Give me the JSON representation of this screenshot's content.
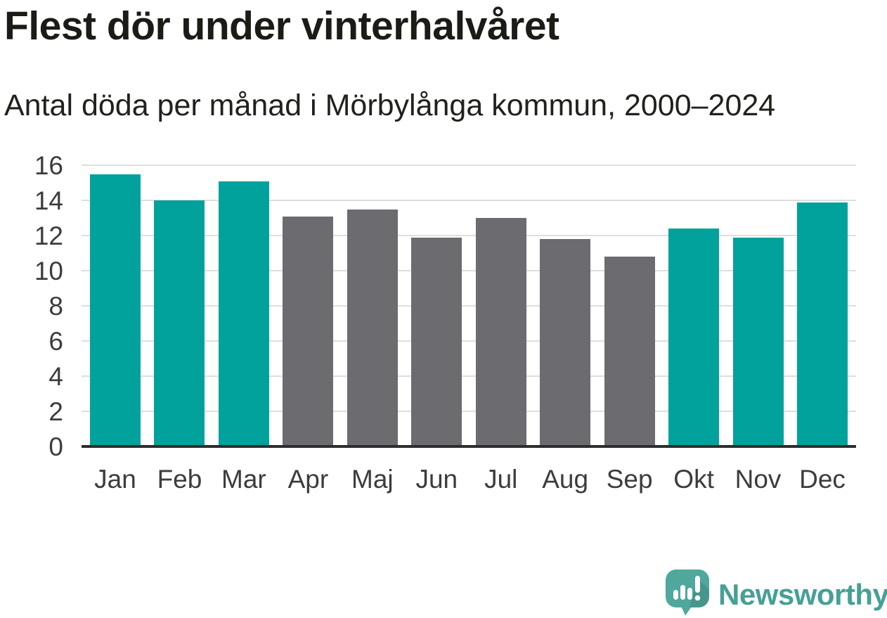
{
  "title": "Flest dör under vinterhalvåret",
  "subtitle": "Antal döda per månad i Mörbylånga kommun, 2000–2024",
  "chart_data": {
    "type": "bar",
    "categories": [
      "Jan",
      "Feb",
      "Mar",
      "Apr",
      "Maj",
      "Jun",
      "Jul",
      "Aug",
      "Sep",
      "Okt",
      "Nov",
      "Dec"
    ],
    "values": [
      15.5,
      14.0,
      15.1,
      13.1,
      13.5,
      11.9,
      13.0,
      11.8,
      10.8,
      12.4,
      11.9,
      13.9
    ],
    "bar_colors": [
      "#00a29b",
      "#00a29b",
      "#00a29b",
      "#6b6b70",
      "#6b6b70",
      "#6b6b70",
      "#6b6b70",
      "#6b6b70",
      "#6b6b70",
      "#00a29b",
      "#00a29b",
      "#00a29b"
    ],
    "title": "Flest dör under vinterhalvåret",
    "subtitle": "Antal döda per månad i Mörbylånga kommun, 2000–2024",
    "xlabel": "",
    "ylabel": "",
    "ylim": [
      0,
      16
    ],
    "yticks": [
      0,
      2,
      4,
      6,
      8,
      10,
      12,
      14,
      16
    ],
    "grid": "horizontal",
    "legend": "none",
    "colors": {
      "highlight": "#00a29b",
      "muted": "#6b6b70",
      "gridline": "#dedede",
      "axis_line": "#2d2d2d",
      "tick_text": "#3c3c3c"
    }
  },
  "footer": {
    "brand": "Newsworthy",
    "brand_color": "#46a096",
    "logo_icon": "newsworthy-chart-bubble-icon",
    "logo_color": "#50a79c"
  }
}
